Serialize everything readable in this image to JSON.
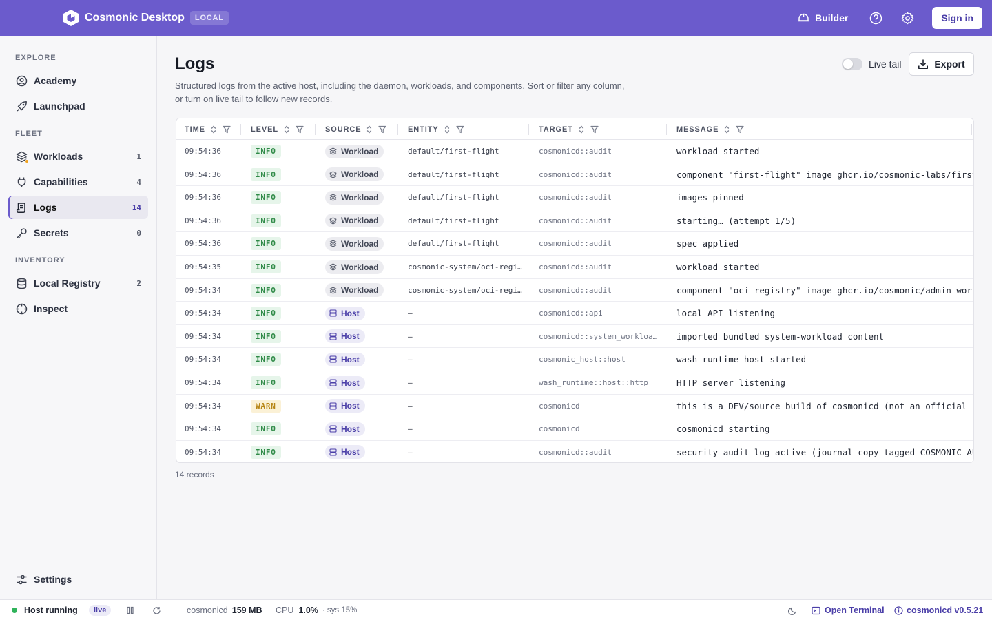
{
  "header": {
    "app_name": "Cosmonic Desktop",
    "badge": "LOCAL",
    "builder_label": "Builder",
    "signin_label": "Sign in"
  },
  "sidebar": {
    "sections": [
      {
        "label": "EXPLORE"
      },
      {
        "label": "FLEET"
      },
      {
        "label": "INVENTORY"
      }
    ],
    "items": [
      {
        "label": "Academy",
        "count": "",
        "icon": "academy-icon"
      },
      {
        "label": "Launchpad",
        "count": "",
        "icon": "rocket-icon"
      },
      {
        "label": "Workloads",
        "count": "1",
        "icon": "layers-icon"
      },
      {
        "label": "Capabilities",
        "count": "4",
        "icon": "plug-icon"
      },
      {
        "label": "Logs",
        "count": "14",
        "icon": "logs-icon",
        "active": true
      },
      {
        "label": "Secrets",
        "count": "0",
        "icon": "key-icon"
      },
      {
        "label": "Local Registry",
        "count": "2",
        "icon": "database-icon"
      },
      {
        "label": "Inspect",
        "count": "",
        "icon": "inspect-icon"
      }
    ],
    "settings_label": "Settings"
  },
  "main": {
    "title": "Logs",
    "description": "Structured logs from the active host, including the daemon, workloads, and components. Sort or filter any column, or turn on live tail to follow new records.",
    "live_tail_label": "Live tail",
    "export_label": "Export",
    "records_label": "14 records"
  },
  "table": {
    "columns": [
      "TIME",
      "LEVEL",
      "SOURCE",
      "ENTITY",
      "TARGET",
      "MESSAGE"
    ],
    "rows": [
      {
        "time": "09:54:36",
        "level": "INFO",
        "source": "Workload",
        "entity": "default/first-flight",
        "target": "cosmonicd::audit",
        "message": "workload started"
      },
      {
        "time": "09:54:36",
        "level": "INFO",
        "source": "Workload",
        "entity": "default/first-flight",
        "target": "cosmonicd::audit",
        "message": "component \"first-flight\" image ghcr.io/cosmonic-labs/first-f"
      },
      {
        "time": "09:54:36",
        "level": "INFO",
        "source": "Workload",
        "entity": "default/first-flight",
        "target": "cosmonicd::audit",
        "message": "images pinned"
      },
      {
        "time": "09:54:36",
        "level": "INFO",
        "source": "Workload",
        "entity": "default/first-flight",
        "target": "cosmonicd::audit",
        "message": "starting… (attempt 1/5)"
      },
      {
        "time": "09:54:36",
        "level": "INFO",
        "source": "Workload",
        "entity": "default/first-flight",
        "target": "cosmonicd::audit",
        "message": "spec applied"
      },
      {
        "time": "09:54:35",
        "level": "INFO",
        "source": "Workload",
        "entity": "cosmonic-system/oci-regi…",
        "target": "cosmonicd::audit",
        "message": "workload started"
      },
      {
        "time": "09:54:34",
        "level": "INFO",
        "source": "Workload",
        "entity": "cosmonic-system/oci-regi…",
        "target": "cosmonicd::audit",
        "message": "component \"oci-registry\" image ghcr.io/cosmonic/admin-worklo"
      },
      {
        "time": "09:54:34",
        "level": "INFO",
        "source": "Host",
        "entity": "—",
        "target": "cosmonicd::api",
        "message": "local API listening"
      },
      {
        "time": "09:54:34",
        "level": "INFO",
        "source": "Host",
        "entity": "—",
        "target": "cosmonicd::system_workloa…",
        "message": "imported bundled system-workload content"
      },
      {
        "time": "09:54:34",
        "level": "INFO",
        "source": "Host",
        "entity": "—",
        "target": "cosmonic_host::host",
        "message": "wash-runtime host started"
      },
      {
        "time": "09:54:34",
        "level": "INFO",
        "source": "Host",
        "entity": "—",
        "target": "wash_runtime::host::http",
        "message": "HTTP server listening"
      },
      {
        "time": "09:54:34",
        "level": "WARN",
        "source": "Host",
        "entity": "—",
        "target": "cosmonicd",
        "message": "this is a DEV/source build of cosmonicd (not an official rel"
      },
      {
        "time": "09:54:34",
        "level": "INFO",
        "source": "Host",
        "entity": "—",
        "target": "cosmonicd",
        "message": "cosmonicd starting"
      },
      {
        "time": "09:54:34",
        "level": "INFO",
        "source": "Host",
        "entity": "—",
        "target": "cosmonicd::audit",
        "message": "security audit log active (journal copy tagged COSMONIC_AUDI"
      }
    ]
  },
  "footer": {
    "host_status": "Host running",
    "live_label": "live",
    "daemon_name": "cosmonicd",
    "daemon_mem": "159 MB",
    "cpu_label": "CPU",
    "cpu_value": "1.0%",
    "sys_label": "· sys 15%",
    "open_terminal": "Open Terminal",
    "version": "cosmonicd v0.5.21"
  },
  "colors": {
    "brand": "#6b5bcc",
    "info": "#2f8a47",
    "warn": "#b78516",
    "status_ok": "#2fb35a"
  }
}
